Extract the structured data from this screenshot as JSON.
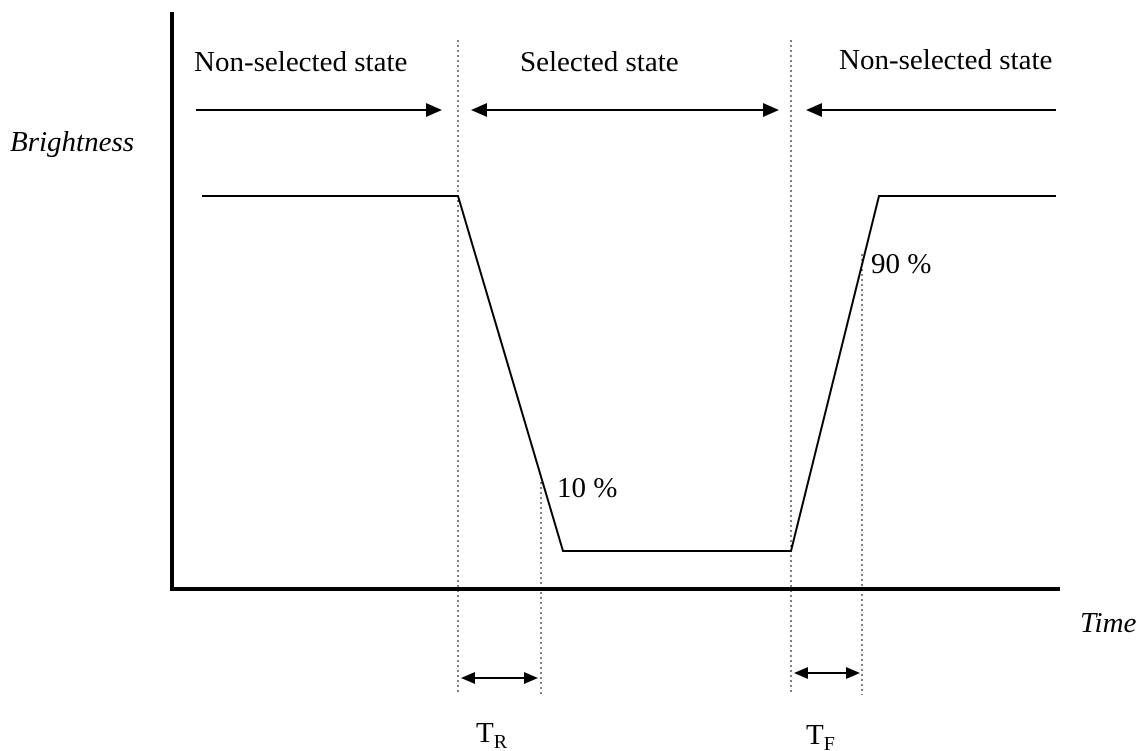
{
  "labels": {
    "non_selected_left": "Non-selected state",
    "selected": "Selected state",
    "non_selected_right": "Non-selected state",
    "y_axis": "Brightness",
    "x_axis": "Time",
    "ten_percent": "10 %",
    "ninety_percent": "90 %",
    "t_rise_main": "T",
    "t_rise_sub": "R",
    "t_fall_main": "T",
    "t_fall_sub": "F"
  }
}
